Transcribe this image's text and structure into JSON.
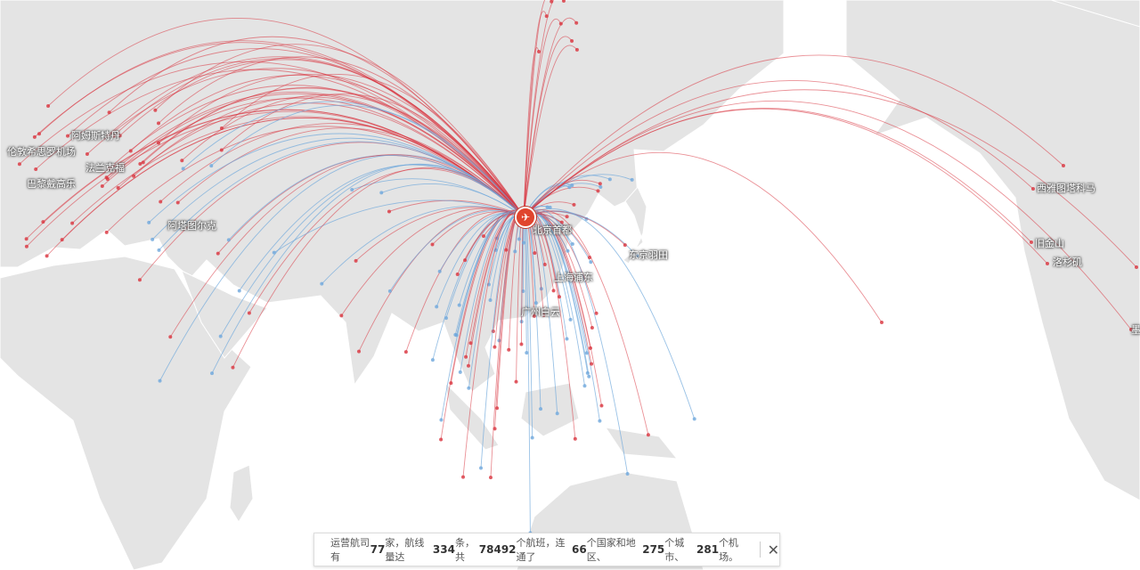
{
  "hub": {
    "name": "北京首都",
    "icon": "airplane-icon",
    "color": "#e0452e"
  },
  "colors": {
    "route_primary": "#d9343f",
    "route_secondary": "#6fa8dc",
    "land": "#e4e4e4",
    "water": "#ffffff"
  },
  "city_labels": [
    {
      "name": "北京首都"
    },
    {
      "name": "东京羽田"
    },
    {
      "name": "上海浦东"
    },
    {
      "name": "广州白云"
    },
    {
      "name": "阿塔图尔克"
    },
    {
      "name": "阿姆斯特丹"
    },
    {
      "name": "伦敦希思罗机场"
    },
    {
      "name": "法兰克福"
    },
    {
      "name": "巴黎戴高乐"
    },
    {
      "name": "西雅图塔科马"
    },
    {
      "name": "旧金山"
    },
    {
      "name": "洛杉矶"
    },
    {
      "name": "墨"
    }
  ],
  "info": {
    "t1": "运营航司有",
    "airlines": "77",
    "t2": "家，航线量达",
    "routes": "334",
    "t3": "条，共",
    "flights": "78492",
    "t4": "个航班，连通了",
    "countries": "66",
    "t5": "个国家和地区、",
    "cities": "275",
    "t6": "个城市、",
    "airports": "281",
    "t7": "个机场。",
    "close": "✕"
  }
}
